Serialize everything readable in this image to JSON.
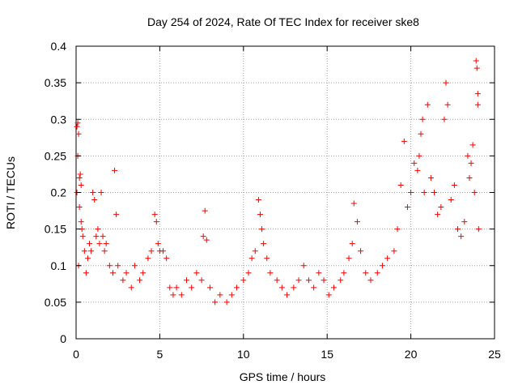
{
  "chart_data": {
    "type": "scatter",
    "title": "Day 254 of 2024, Rate Of TEC Index for receiver ske8",
    "xlabel": "GPS time / hours",
    "ylabel": "ROTI / TECUs",
    "xlim": [
      0,
      25
    ],
    "ylim": [
      0,
      0.4
    ],
    "x_ticks": [
      0,
      5,
      10,
      15,
      20,
      25
    ],
    "y_ticks": [
      0,
      0.05,
      0.1,
      0.15,
      0.2,
      0.25,
      0.3,
      0.35,
      0.4
    ],
    "x_tick_labels": [
      "0",
      "5",
      "10",
      "15",
      "20",
      "25"
    ],
    "y_tick_labels": [
      "0",
      "0.05",
      "0.1",
      "0.15",
      "0.2",
      "0.25",
      "0.3",
      "0.35",
      "0.4"
    ],
    "grid": true,
    "marker": "+",
    "color": "#ff0000",
    "series": [
      {
        "name": "ROTI",
        "points": [
          [
            0.05,
            0.29
          ],
          [
            0.1,
            0.295
          ],
          [
            0.15,
            0.28
          ],
          [
            0.1,
            0.25
          ],
          [
            0.2,
            0.22
          ],
          [
            0.25,
            0.225
          ],
          [
            0.3,
            0.21
          ],
          [
            0.05,
            0.2
          ],
          [
            0.2,
            0.18
          ],
          [
            0.3,
            0.16
          ],
          [
            0.35,
            0.15
          ],
          [
            0.4,
            0.14
          ],
          [
            0.5,
            0.12
          ],
          [
            0.15,
            0.1
          ],
          [
            0.6,
            0.09
          ],
          [
            0.7,
            0.11
          ],
          [
            0.8,
            0.13
          ],
          [
            0.9,
            0.12
          ],
          [
            1.0,
            0.2
          ],
          [
            1.1,
            0.19
          ],
          [
            1.2,
            0.14
          ],
          [
            1.3,
            0.15
          ],
          [
            1.4,
            0.13
          ],
          [
            1.5,
            0.2
          ],
          [
            1.6,
            0.14
          ],
          [
            1.7,
            0.12
          ],
          [
            1.8,
            0.13
          ],
          [
            2.0,
            0.1
          ],
          [
            2.2,
            0.09
          ],
          [
            2.3,
            0.23
          ],
          [
            2.4,
            0.17
          ],
          [
            2.5,
            0.1
          ],
          [
            2.8,
            0.08
          ],
          [
            3.0,
            0.09
          ],
          [
            3.3,
            0.07
          ],
          [
            3.5,
            0.1
          ],
          [
            3.8,
            0.08
          ],
          [
            4.0,
            0.09
          ],
          [
            4.3,
            0.11
          ],
          [
            4.5,
            0.12
          ],
          [
            4.7,
            0.17
          ],
          [
            4.8,
            0.16
          ],
          [
            4.9,
            0.13
          ],
          [
            5.0,
            0.12
          ],
          [
            5.2,
            0.12
          ],
          [
            5.4,
            0.11
          ],
          [
            5.6,
            0.07
          ],
          [
            5.8,
            0.06
          ],
          [
            6.0,
            0.07
          ],
          [
            6.3,
            0.06
          ],
          [
            6.6,
            0.08
          ],
          [
            6.9,
            0.07
          ],
          [
            7.2,
            0.09
          ],
          [
            7.5,
            0.08
          ],
          [
            7.6,
            0.14
          ],
          [
            7.7,
            0.175
          ],
          [
            7.8,
            0.135
          ],
          [
            8.0,
            0.07
          ],
          [
            8.3,
            0.05
          ],
          [
            8.6,
            0.06
          ],
          [
            9.0,
            0.05
          ],
          [
            9.3,
            0.06
          ],
          [
            9.6,
            0.07
          ],
          [
            10.0,
            0.08
          ],
          [
            10.3,
            0.09
          ],
          [
            10.5,
            0.11
          ],
          [
            10.7,
            0.12
          ],
          [
            10.9,
            0.19
          ],
          [
            11.0,
            0.17
          ],
          [
            11.1,
            0.15
          ],
          [
            11.2,
            0.13
          ],
          [
            11.4,
            0.11
          ],
          [
            11.6,
            0.09
          ],
          [
            12.0,
            0.08
          ],
          [
            12.3,
            0.07
          ],
          [
            12.6,
            0.06
          ],
          [
            13.0,
            0.07
          ],
          [
            13.3,
            0.08
          ],
          [
            13.6,
            0.1
          ],
          [
            13.9,
            0.08
          ],
          [
            14.2,
            0.07
          ],
          [
            14.5,
            0.09
          ],
          [
            14.8,
            0.08
          ],
          [
            15.1,
            0.06
          ],
          [
            15.4,
            0.07
          ],
          [
            15.8,
            0.08
          ],
          [
            16.0,
            0.09
          ],
          [
            16.3,
            0.11
          ],
          [
            16.5,
            0.13
          ],
          [
            16.6,
            0.185
          ],
          [
            16.8,
            0.16
          ],
          [
            17.0,
            0.12
          ],
          [
            17.3,
            0.09
          ],
          [
            17.6,
            0.08
          ],
          [
            18.0,
            0.09
          ],
          [
            18.3,
            0.1
          ],
          [
            18.6,
            0.11
          ],
          [
            19.0,
            0.12
          ],
          [
            19.2,
            0.15
          ],
          [
            19.4,
            0.21
          ],
          [
            19.6,
            0.27
          ],
          [
            19.8,
            0.18
          ],
          [
            20.0,
            0.2
          ],
          [
            20.2,
            0.24
          ],
          [
            20.4,
            0.23
          ],
          [
            20.5,
            0.25
          ],
          [
            20.6,
            0.28
          ],
          [
            20.7,
            0.3
          ],
          [
            20.8,
            0.2
          ],
          [
            21.0,
            0.32
          ],
          [
            21.2,
            0.22
          ],
          [
            21.4,
            0.2
          ],
          [
            21.6,
            0.17
          ],
          [
            21.8,
            0.18
          ],
          [
            22.0,
            0.3
          ],
          [
            22.1,
            0.35
          ],
          [
            22.2,
            0.32
          ],
          [
            22.4,
            0.19
          ],
          [
            22.6,
            0.21
          ],
          [
            22.8,
            0.15
          ],
          [
            23.0,
            0.14
          ],
          [
            23.2,
            0.16
          ],
          [
            23.4,
            0.25
          ],
          [
            23.5,
            0.22
          ],
          [
            23.6,
            0.24
          ],
          [
            23.7,
            0.265
          ],
          [
            23.8,
            0.2
          ],
          [
            23.9,
            0.38
          ],
          [
            23.95,
            0.37
          ],
          [
            24.0,
            0.335
          ],
          [
            24.0,
            0.32
          ],
          [
            24.05,
            0.15
          ]
        ]
      }
    ]
  }
}
